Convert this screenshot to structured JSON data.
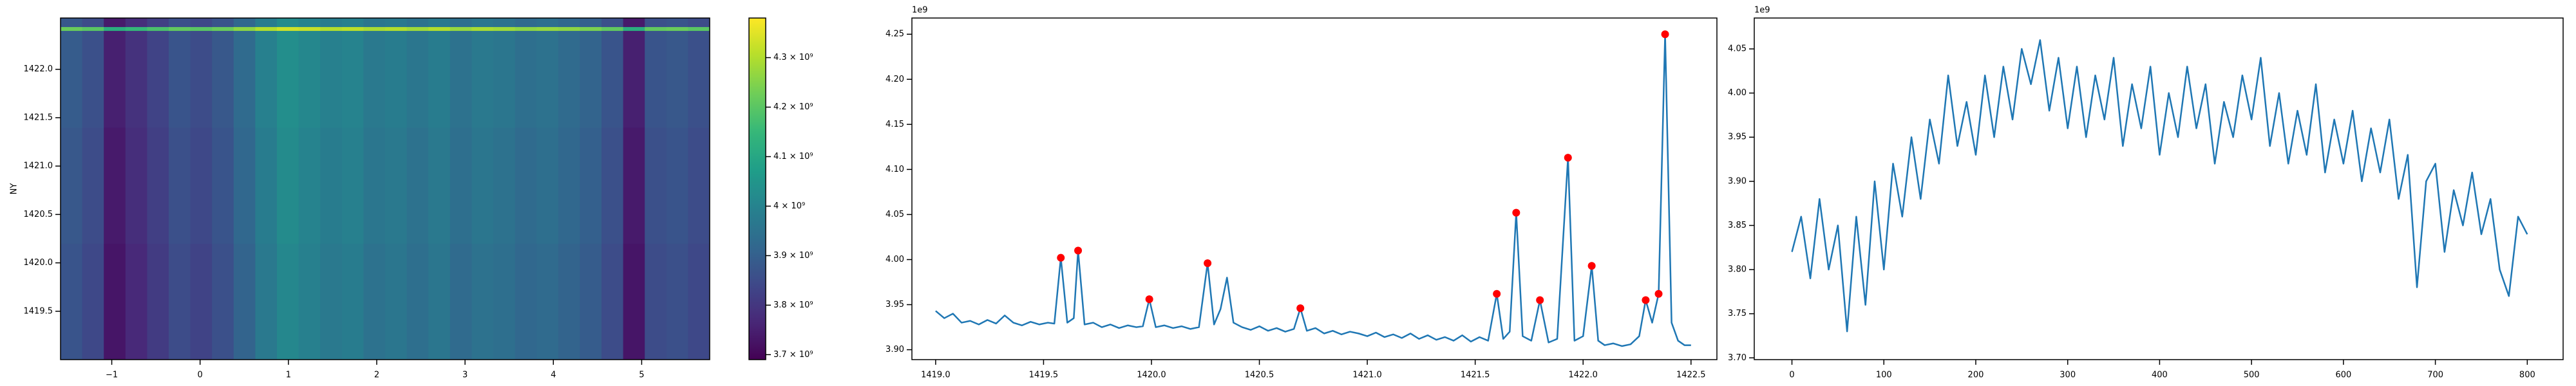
{
  "chart_data": [
    {
      "type": "heatmap",
      "ylabel": "NY",
      "colormap": "viridis",
      "xlim": [
        -1.58,
        5.77
      ],
      "ylim": [
        1419.0,
        1422.53
      ],
      "xticks": [
        {
          "value": -1,
          "label": "−1"
        },
        0,
        1,
        2,
        3,
        4,
        5
      ],
      "yticks": [
        1419.5,
        {
          "value": 1420,
          "label": "1420.0"
        },
        1420.5,
        {
          "value": 1421,
          "label": "1421.0"
        },
        1421.5,
        {
          "value": 1422,
          "label": "1422.0"
        }
      ],
      "xbins": [
        -1.58,
        -1.335,
        -1.09,
        -0.845,
        -0.6,
        -0.355,
        -0.11,
        0.135,
        0.38,
        0.625,
        0.87,
        1.115,
        1.36,
        1.605,
        1.85,
        2.095,
        2.34,
        2.585,
        2.83,
        3.075,
        3.32,
        3.565,
        3.81,
        4.055,
        4.3,
        4.545,
        4.79,
        5.035,
        5.28,
        5.525,
        5.77
      ],
      "ybins": [
        1419.0,
        1420.2,
        1421.4,
        1422.4,
        1422.44,
        1422.53
      ],
      "values": [
        [
          3870000000.0,
          3840000000.0,
          3730000000.0,
          3770000000.0,
          3810000000.0,
          3850000000.0,
          3830000000.0,
          3860000000.0,
          3910000000.0,
          3970000000.0,
          4010000000.0,
          3990000000.0,
          3970000000.0,
          3980000000.0,
          3950000000.0,
          3960000000.0,
          3940000000.0,
          3960000000.0,
          3930000000.0,
          3950000000.0,
          3940000000.0,
          3920000000.0,
          3930000000.0,
          3910000000.0,
          3890000000.0,
          3850000000.0,
          3730000000.0,
          3850000000.0,
          3860000000.0,
          3840000000.0
        ],
        [
          3880000000.0,
          3850000000.0,
          3740000000.0,
          3780000000.0,
          3820000000.0,
          3860000000.0,
          3840000000.0,
          3870000000.0,
          3920000000.0,
          3980000000.0,
          4020000000.0,
          4000000000.0,
          3980000000.0,
          3990000000.0,
          3960000000.0,
          3970000000.0,
          3950000000.0,
          3970000000.0,
          3940000000.0,
          3960000000.0,
          3950000000.0,
          3930000000.0,
          3940000000.0,
          3920000000.0,
          3900000000.0,
          3860000000.0,
          3740000000.0,
          3860000000.0,
          3870000000.0,
          3850000000.0
        ],
        [
          3890000000.0,
          3860000000.0,
          3750000000.0,
          3790000000.0,
          3830000000.0,
          3870000000.0,
          3850000000.0,
          3880000000.0,
          3930000000.0,
          3990000000.0,
          4030000000.0,
          4010000000.0,
          3990000000.0,
          4000000000.0,
          3970000000.0,
          3980000000.0,
          3960000000.0,
          3980000000.0,
          3950000000.0,
          3970000000.0,
          3960000000.0,
          3940000000.0,
          3950000000.0,
          3930000000.0,
          3910000000.0,
          3870000000.0,
          3750000000.0,
          3870000000.0,
          3880000000.0,
          3860000000.0
        ],
        [
          4220000000.0,
          4200000000.0,
          4120000000.0,
          4150000000.0,
          4180000000.0,
          4210000000.0,
          4200000000.0,
          4220000000.0,
          4260000000.0,
          4300000000.0,
          4330000000.0,
          4320000000.0,
          4300000000.0,
          4310000000.0,
          4290000000.0,
          4300000000.0,
          4280000000.0,
          4300000000.0,
          4270000000.0,
          4290000000.0,
          4280000000.0,
          4260000000.0,
          4270000000.0,
          4260000000.0,
          4240000000.0,
          4210000000.0,
          4120000000.0,
          4210000000.0,
          4220000000.0,
          4200000000.0
        ],
        [
          3880000000.0,
          3850000000.0,
          3740000000.0,
          3780000000.0,
          3820000000.0,
          3860000000.0,
          3840000000.0,
          3870000000.0,
          3920000000.0,
          3980000000.0,
          4020000000.0,
          4000000000.0,
          3980000000.0,
          3990000000.0,
          3960000000.0,
          3970000000.0,
          3950000000.0,
          3970000000.0,
          3940000000.0,
          3960000000.0,
          3950000000.0,
          3930000000.0,
          3940000000.0,
          3920000000.0,
          3900000000.0,
          3860000000.0,
          3740000000.0,
          3860000000.0,
          3870000000.0,
          3850000000.0
        ]
      ],
      "clim": [
        3690000000.0,
        4380000000.0
      ],
      "cticks": [
        {
          "value": 3700000000.0,
          "label": "3.7 × 10⁹"
        },
        {
          "value": 3800000000.0,
          "label": "3.8 × 10⁹"
        },
        {
          "value": 3900000000.0,
          "label": "3.9 × 10⁹"
        },
        {
          "value": 4000000000.0,
          "label": "4 × 10⁹"
        },
        {
          "value": 4100000000.0,
          "label": "4.1 × 10⁹"
        },
        {
          "value": 4200000000.0,
          "label": "4.2 × 10⁹"
        },
        {
          "value": 4300000000.0,
          "label": "4.3 × 10⁹"
        }
      ]
    },
    {
      "type": "line",
      "offset_label": "1e9",
      "xlim": [
        1418.89,
        1422.62
      ],
      "ylim": [
        3.889,
        4.268
      ],
      "xticks": [
        {
          "value": 1419,
          "label": "1419.0"
        },
        1419.5,
        {
          "value": 1420,
          "label": "1420.0"
        },
        1420.5,
        {
          "value": 1421,
          "label": "1421.0"
        },
        1421.5,
        {
          "value": 1422,
          "label": "1422.0"
        },
        1422.5
      ],
      "yticks": [
        {
          "value": 3.9,
          "label": "3.90"
        },
        3.95,
        {
          "value": 4.0,
          "label": "4.00"
        },
        4.05,
        {
          "value": 4.1,
          "label": "4.10"
        },
        4.15,
        {
          "value": 4.2,
          "label": "4.20"
        },
        4.25
      ],
      "series": [
        {
          "color": "#1f77b4",
          "marker": "none",
          "x": [
            1419.0,
            1419.04,
            1419.08,
            1419.12,
            1419.16,
            1419.2,
            1419.24,
            1419.28,
            1419.32,
            1419.36,
            1419.4,
            1419.44,
            1419.48,
            1419.52,
            1419.55,
            1419.58,
            1419.61,
            1419.64,
            1419.66,
            1419.69,
            1419.73,
            1419.77,
            1419.81,
            1419.85,
            1419.89,
            1419.93,
            1419.96,
            1419.99,
            1420.02,
            1420.06,
            1420.1,
            1420.14,
            1420.18,
            1420.22,
            1420.26,
            1420.29,
            1420.32,
            1420.35,
            1420.38,
            1420.42,
            1420.46,
            1420.5,
            1420.54,
            1420.58,
            1420.62,
            1420.66,
            1420.69,
            1420.72,
            1420.76,
            1420.8,
            1420.84,
            1420.88,
            1420.92,
            1420.96,
            1421.0,
            1421.04,
            1421.08,
            1421.12,
            1421.16,
            1421.2,
            1421.24,
            1421.28,
            1421.32,
            1421.36,
            1421.4,
            1421.44,
            1421.48,
            1421.52,
            1421.56,
            1421.6,
            1421.63,
            1421.66,
            1421.69,
            1421.72,
            1421.76,
            1421.8,
            1421.84,
            1421.88,
            1421.93,
            1421.96,
            1422.0,
            1422.04,
            1422.07,
            1422.1,
            1422.14,
            1422.18,
            1422.22,
            1422.26,
            1422.29,
            1422.32,
            1422.35,
            1422.38,
            1422.41,
            1422.44,
            1422.47,
            1422.5
          ],
          "values": [
            3.943,
            3.935,
            3.94,
            3.93,
            3.932,
            3.928,
            3.933,
            3.929,
            3.938,
            3.93,
            3.927,
            3.931,
            3.928,
            3.93,
            3.929,
            4.002,
            3.93,
            3.935,
            4.01,
            3.928,
            3.93,
            3.925,
            3.928,
            3.924,
            3.927,
            3.925,
            3.926,
            3.956,
            3.925,
            3.927,
            3.924,
            3.926,
            3.923,
            3.925,
            3.996,
            3.928,
            3.945,
            3.98,
            3.93,
            3.925,
            3.922,
            3.926,
            3.921,
            3.924,
            3.92,
            3.923,
            3.946,
            3.921,
            3.924,
            3.918,
            3.921,
            3.917,
            3.92,
            3.918,
            3.915,
            3.919,
            3.914,
            3.917,
            3.913,
            3.918,
            3.912,
            3.916,
            3.911,
            3.914,
            3.91,
            3.916,
            3.909,
            3.914,
            3.91,
            3.962,
            3.912,
            3.92,
            4.052,
            3.915,
            3.91,
            3.955,
            3.908,
            3.912,
            4.113,
            3.91,
            3.915,
            3.993,
            3.91,
            3.905,
            3.907,
            3.904,
            3.906,
            3.915,
            3.955,
            3.93,
            3.962,
            4.25,
            3.93,
            3.91,
            3.905,
            3.905
          ]
        },
        {
          "color": "#ff0000",
          "marker": "dot",
          "x": [
            1419.58,
            1419.66,
            1419.99,
            1420.26,
            1420.69,
            1421.6,
            1421.69,
            1421.8,
            1421.93,
            1422.04,
            1422.29,
            1422.35,
            1422.38
          ],
          "values": [
            4.002,
            4.01,
            3.956,
            3.996,
            3.946,
            3.962,
            4.052,
            3.955,
            4.113,
            3.993,
            3.955,
            3.962,
            4.25
          ]
        }
      ]
    },
    {
      "type": "line",
      "offset_label": "1e9",
      "xlim": [
        -41,
        839
      ],
      "ylim": [
        3.698,
        4.085
      ],
      "xticks": [
        0,
        100,
        200,
        300,
        400,
        500,
        600,
        700,
        800
      ],
      "yticks": [
        {
          "value": 3.7,
          "label": "3.70"
        },
        3.75,
        {
          "value": 3.8,
          "label": "3.80"
        },
        3.85,
        {
          "value": 3.9,
          "label": "3.90"
        },
        3.95,
        {
          "value": 4.0,
          "label": "4.00"
        },
        4.05
      ],
      "series": [
        {
          "color": "#1f77b4",
          "marker": "none",
          "x": [
            0,
            10,
            20,
            30,
            40,
            50,
            60,
            70,
            80,
            90,
            100,
            110,
            120,
            130,
            140,
            150,
            160,
            170,
            180,
            190,
            200,
            210,
            220,
            230,
            240,
            250,
            260,
            270,
            280,
            290,
            300,
            310,
            320,
            330,
            340,
            350,
            360,
            370,
            380,
            390,
            400,
            410,
            420,
            430,
            440,
            450,
            460,
            470,
            480,
            490,
            500,
            510,
            520,
            530,
            540,
            550,
            560,
            570,
            580,
            590,
            600,
            610,
            620,
            630,
            640,
            650,
            660,
            670,
            680,
            690,
            700,
            710,
            720,
            730,
            740,
            750,
            760,
            770,
            780,
            790,
            800
          ],
          "values": [
            3.82,
            3.86,
            3.79,
            3.88,
            3.8,
            3.85,
            3.73,
            3.86,
            3.76,
            3.9,
            3.8,
            3.92,
            3.86,
            3.95,
            3.88,
            3.97,
            3.92,
            4.02,
            3.94,
            3.99,
            3.93,
            4.02,
            3.95,
            4.03,
            3.97,
            4.05,
            4.01,
            4.06,
            3.98,
            4.04,
            3.96,
            4.03,
            3.95,
            4.02,
            3.97,
            4.04,
            3.94,
            4.01,
            3.96,
            4.03,
            3.93,
            4.0,
            3.95,
            4.03,
            3.96,
            4.01,
            3.92,
            3.99,
            3.95,
            4.02,
            3.97,
            4.04,
            3.94,
            4.0,
            3.92,
            3.98,
            3.93,
            4.01,
            3.91,
            3.97,
            3.92,
            3.98,
            3.9,
            3.96,
            3.91,
            3.97,
            3.88,
            3.93,
            3.78,
            3.9,
            3.92,
            3.82,
            3.89,
            3.85,
            3.91,
            3.84,
            3.88,
            3.8,
            3.77,
            3.86,
            3.84
          ]
        }
      ]
    }
  ]
}
